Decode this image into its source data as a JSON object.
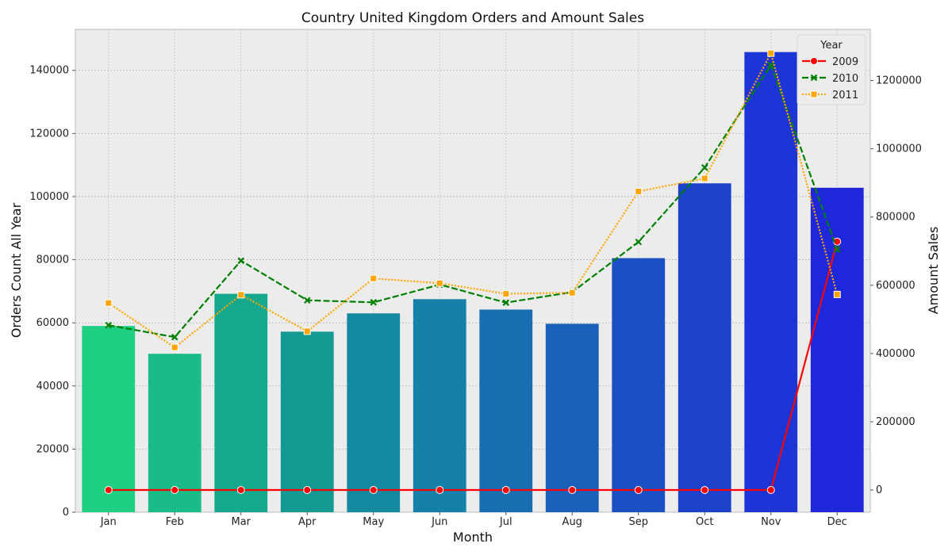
{
  "chart_data": {
    "type": "bar",
    "title": "Country United Kingdom Orders and Amount Sales",
    "xlabel": "Month",
    "ylabel": "Orders Count All Year",
    "y2label": "Amount Sales",
    "categories": [
      "Jan",
      "Feb",
      "Mar",
      "Apr",
      "May",
      "Jun",
      "Jul",
      "Aug",
      "Sep",
      "Oct",
      "Nov",
      "Dec"
    ],
    "bars": {
      "values": [
        59000,
        50200,
        69200,
        57200,
        63000,
        67500,
        64200,
        59700,
        80500,
        104200,
        145800,
        102800
      ],
      "colors": [
        "#1fcf82",
        "#19bb88",
        "#16a88d",
        "#139a92",
        "#138aa0",
        "#1580a8",
        "#176eb0",
        "#1a60ba",
        "#1b50c4",
        "#1c42cc",
        "#1d34d6",
        "#1e28da"
      ]
    },
    "ylim": [
      0,
      153000
    ],
    "yticks": [
      0,
      20000,
      40000,
      60000,
      80000,
      100000,
      120000,
      140000
    ],
    "y2lim": [
      -65000,
      1350000
    ],
    "y2ticks": [
      0,
      200000,
      400000,
      600000,
      800000,
      1000000,
      1200000
    ],
    "series": [
      {
        "name": "2009",
        "color": "#ff0000",
        "dash": "solid",
        "marker": "circle",
        "values": [
          0,
          0,
          0,
          0,
          0,
          0,
          0,
          0,
          0,
          0,
          0,
          728000
        ]
      },
      {
        "name": "2010",
        "color": "#008000",
        "dash": "dashed",
        "marker": "x",
        "values": [
          483000,
          448000,
          672000,
          556000,
          550000,
          602000,
          549000,
          580000,
          727000,
          945000,
          1245000,
          705000
        ]
      },
      {
        "name": "2011",
        "color": "#ffa500",
        "dash": "dotted",
        "marker": "square",
        "values": [
          548000,
          418000,
          572000,
          465000,
          620000,
          606000,
          575000,
          578000,
          875000,
          913000,
          1280000,
          573000
        ]
      }
    ],
    "legend": {
      "title": "Year",
      "placement": "top-right"
    },
    "grid": true,
    "background": "#ececec"
  }
}
